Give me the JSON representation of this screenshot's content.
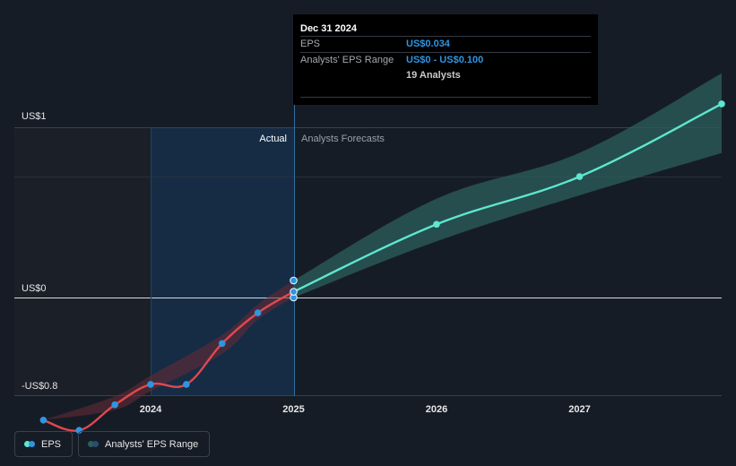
{
  "tooltip": {
    "date": "Dec 31 2024",
    "eps_label": "EPS",
    "eps_value": "US$0.034",
    "range_label": "Analysts' EPS Range",
    "range_value": "US$0 - US$0.100",
    "analysts": "19 Analysts"
  },
  "labels": {
    "actual": "Actual",
    "forecast": "Analysts Forecasts"
  },
  "legend": {
    "eps": "EPS",
    "range": "Analysts' EPS Range"
  },
  "colors": {
    "background": "#161c26",
    "actual_line": "#e0484f",
    "actual_point": "#2f95e3",
    "forecast_line": "#5ee6cf",
    "forecast_band": "#2c5f5c",
    "highlight": "#173250"
  },
  "chart_data": {
    "type": "line",
    "y_ticks": [
      {
        "value": 1,
        "label": "US$1"
      },
      {
        "value": 0,
        "label": "US$0"
      },
      {
        "value": -0.8,
        "label": "-US$0.8"
      }
    ],
    "x_ticks": [
      {
        "value": 2024,
        "label": "2024"
      },
      {
        "value": 2025,
        "label": "2025"
      },
      {
        "value": 2026,
        "label": "2026"
      },
      {
        "value": 2027,
        "label": "2027"
      }
    ],
    "ylim": [
      -0.8,
      1
    ],
    "xlim": [
      2023.1,
      2028.0
    ],
    "grid": true,
    "legend_position": "bottom-left",
    "series": [
      {
        "name": "EPS",
        "kind": "actual",
        "points": [
          [
            2023.25,
            -0.72
          ],
          [
            2023.5,
            -0.78
          ],
          [
            2023.75,
            -0.63
          ],
          [
            2024.0,
            -0.51
          ],
          [
            2024.25,
            -0.51
          ],
          [
            2024.5,
            -0.27
          ],
          [
            2024.75,
            -0.09
          ],
          [
            2025.0,
            0.034
          ]
        ]
      },
      {
        "name": "EPS",
        "kind": "forecast",
        "points": [
          [
            2025.0,
            0.034
          ],
          [
            2026.0,
            0.43
          ],
          [
            2027.0,
            0.71
          ],
          [
            2028.0,
            1.14
          ]
        ]
      },
      {
        "name": "Analysts' EPS Range",
        "kind": "forecast_range",
        "points": [
          [
            2025.0,
            0.0,
            0.1
          ],
          [
            2026.0,
            0.33,
            0.58
          ],
          [
            2027.0,
            0.6,
            0.85
          ],
          [
            2028.0,
            0.85,
            1.32
          ]
        ]
      },
      {
        "name": "Analysts' EPS Range",
        "kind": "historic_range",
        "points": [
          [
            2023.25,
            -0.72,
            -0.72
          ],
          [
            2023.75,
            -0.66,
            -0.58
          ],
          [
            2024.0,
            -0.55,
            -0.46
          ],
          [
            2024.5,
            -0.33,
            -0.22
          ],
          [
            2024.75,
            -0.13,
            -0.04
          ],
          [
            2025.0,
            0.0,
            0.1
          ]
        ]
      }
    ],
    "tooltip_points": [
      0.0,
      0.034,
      0.1
    ]
  }
}
